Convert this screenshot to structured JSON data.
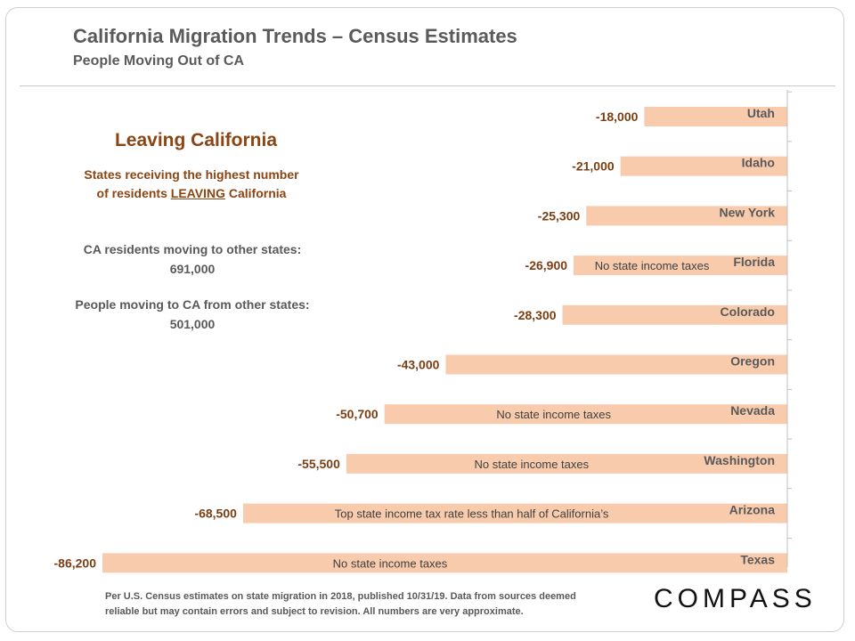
{
  "header": {
    "title": "California Migration Trends – Census Estimates",
    "subtitle": "People Moving Out of CA"
  },
  "panel": {
    "heading": "Leaving California",
    "desc_line1": "States receiving the highest number",
    "desc_line2_pre": "of residents ",
    "desc_line2_underlined": "LEAVING",
    "desc_line2_post": " California",
    "stat1_label": "CA residents moving to other states:",
    "stat1_value": "691,000",
    "stat2_label": "People moving to CA from other states:",
    "stat2_value": "501,000"
  },
  "footer": {
    "note_line1": "Per U.S. Census estimates on state migration in 2018, published 10/31/19. Data from sources deemed",
    "note_line2": "reliable but may contain errors and subject to revision.  All numbers are very approximate.",
    "brand": "COMPASS"
  },
  "colors": {
    "bar": "#f9cbad",
    "value_label": "#7b3d12",
    "heading": "#8b4513",
    "text": "#595959"
  },
  "chart_data": {
    "type": "bar",
    "orientation": "horizontal",
    "categories": [
      "Utah",
      "Idaho",
      "New York",
      "Florida",
      "Colorado",
      "Oregon",
      "Nevada",
      "Washington",
      "Arizona",
      "Texas"
    ],
    "values": [
      -18000,
      -21000,
      -25300,
      -26900,
      -28300,
      -43000,
      -50700,
      -55500,
      -68500,
      -86200
    ],
    "value_labels": [
      "-18,000",
      "-21,000",
      "-25,300",
      "-26,900",
      "-28,300",
      "-43,000",
      "-50,700",
      "-55,500",
      "-68,500",
      "-86,200"
    ],
    "annotations": [
      "",
      "",
      "",
      "No state income taxes",
      "",
      "",
      "No state income taxes",
      "No state income taxes",
      "Top state income tax rate less than half of California’s",
      "No state income taxes"
    ],
    "xlim": [
      -86200,
      0
    ],
    "grid": false
  }
}
